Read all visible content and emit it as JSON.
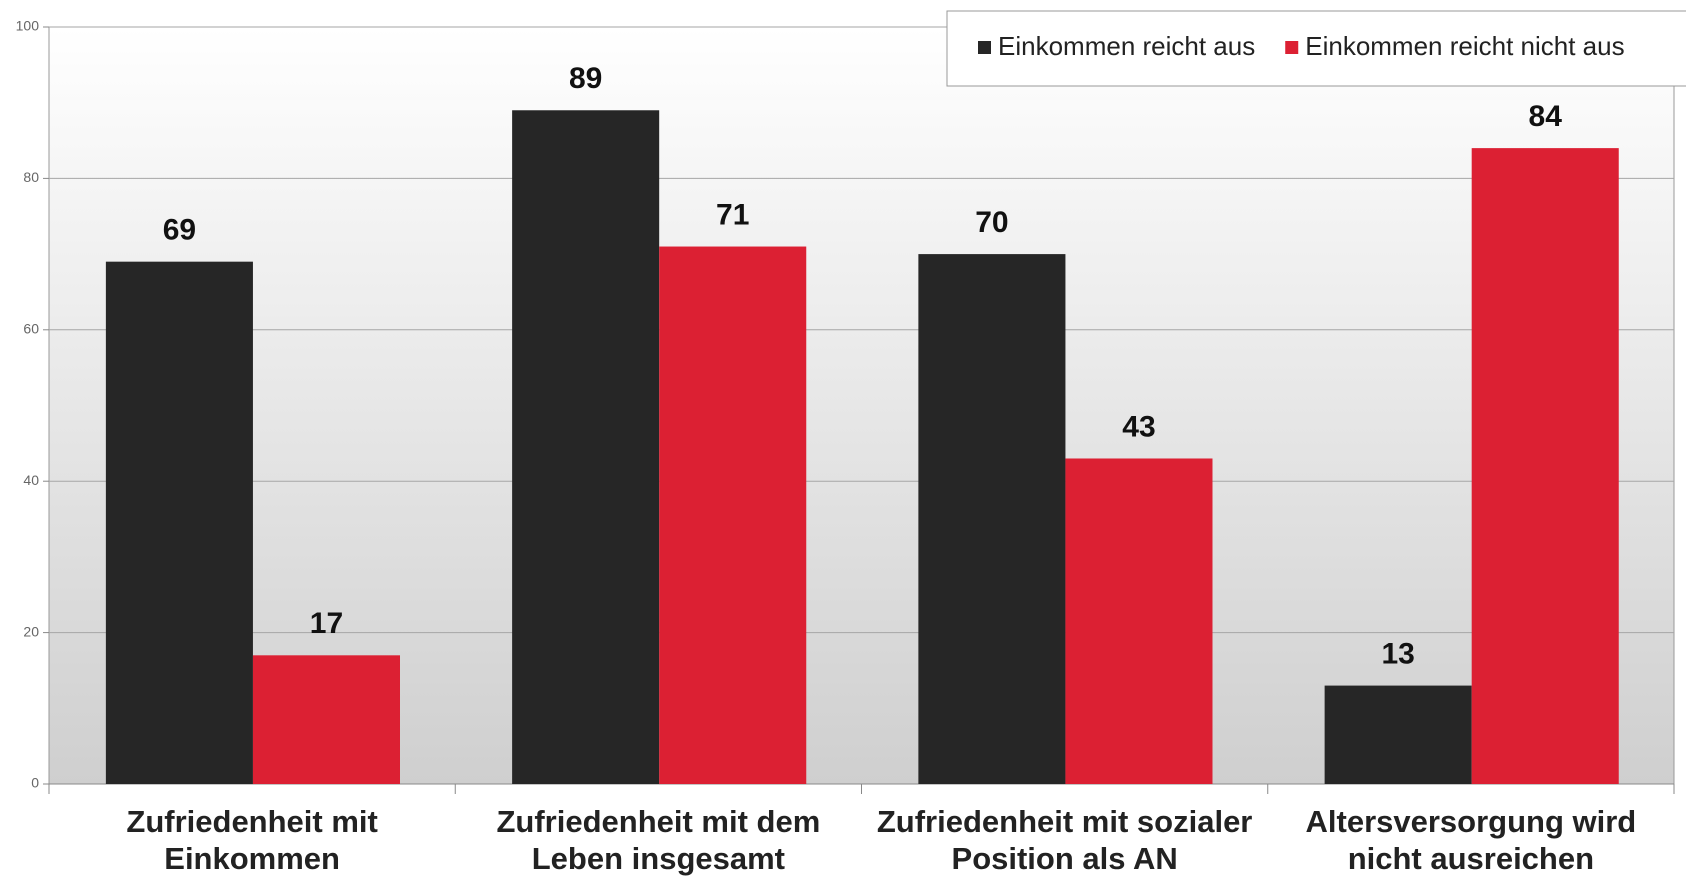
{
  "chart_data": {
    "type": "bar",
    "categories": [
      [
        "Zufriedenheit mit",
        "Einkommen"
      ],
      [
        "Zufriedenheit mit dem",
        "Leben insgesamt"
      ],
      [
        "Zufriedenheit mit sozialer",
        "Position als AN"
      ],
      [
        "Altersversorgung wird",
        "nicht ausreichen"
      ]
    ],
    "series": [
      {
        "name": "Einkommen reicht aus",
        "color": "#262626",
        "values": [
          69,
          89,
          70,
          13
        ]
      },
      {
        "name": "Einkommen reicht nicht aus",
        "color": "#dc2033",
        "values": [
          17,
          71,
          43,
          84
        ]
      }
    ],
    "ylim": [
      0,
      100
    ],
    "yticks": [
      0,
      20,
      40,
      60,
      80,
      100
    ],
    "grid": true,
    "legend": "top-right"
  }
}
